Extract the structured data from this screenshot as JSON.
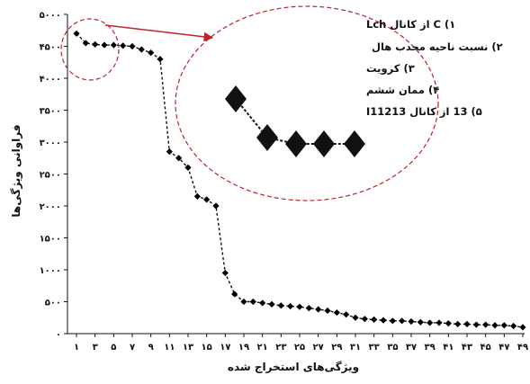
{
  "chart_data": {
    "type": "line",
    "xlabel": "ویژگی‌های استخراج شده",
    "ylabel": "فراوانی ویژگی‌ها",
    "ylim": [
      0,
      5000
    ],
    "yticks": [
      0,
      500,
      1000,
      1500,
      2000,
      2500,
      3000,
      3500,
      4000,
      4500,
      5000
    ],
    "ytick_labels": [
      "۰",
      "۵۰۰",
      "۱۰۰۰",
      "۱۵۰۰",
      "۲۰۰۰",
      "۲۵۰۰",
      "۳۰۰۰",
      "۳۵۰۰",
      "۴۰۰۰",
      "۴۵۰۰",
      "۵۰۰۰"
    ],
    "xlim": [
      1,
      49
    ],
    "xtick_labels": [
      "۱",
      "۳",
      "۵",
      "۷",
      "۹",
      "۱۱",
      "۱۳",
      "۱۵",
      "۱۷",
      "۱۹",
      "۲۱",
      "۲۳",
      "۲۵",
      "۲۷",
      "۲۹",
      "۳۱",
      "۳۳",
      "۳۵",
      "۳۷",
      "۳۹",
      "۴۱",
      "۴۳",
      "۴۵",
      "۴۷",
      "۴۹"
    ],
    "x": [
      1,
      2,
      3,
      4,
      5,
      6,
      7,
      8,
      9,
      10,
      11,
      12,
      13,
      14,
      15,
      16,
      17,
      18,
      19,
      20,
      21,
      22,
      23,
      24,
      25,
      26,
      27,
      28,
      29,
      30,
      31,
      32,
      33,
      34,
      35,
      36,
      37,
      38,
      39,
      40,
      41,
      42,
      43,
      44,
      45,
      46,
      47,
      48,
      49
    ],
    "series": [
      {
        "name": "",
        "color": "#000000",
        "values": [
          4700,
          4550,
          4530,
          4520,
          4520,
          4510,
          4500,
          4450,
          4400,
          4300,
          2850,
          2750,
          2600,
          2150,
          2100,
          2000,
          950,
          620,
          500,
          500,
          480,
          460,
          440,
          430,
          420,
          400,
          380,
          360,
          330,
          300,
          250,
          230,
          220,
          210,
          200,
          200,
          190,
          180,
          170,
          170,
          160,
          150,
          150,
          140,
          140,
          130,
          130,
          120,
          100
        ]
      }
    ],
    "grid": false,
    "legend": "none",
    "annotation": {
      "lines": [
        "۱) C از کانال Lch",
        "۲) نسبت ناحیه محدب هال",
        "۳) کرویت",
        "۴) ممان ششم",
        "۵) 13 از کانال I11213"
      ],
      "marker_count": 5,
      "ellipse_color": "#b8242a",
      "arrow_color": "#c0242a"
    }
  }
}
